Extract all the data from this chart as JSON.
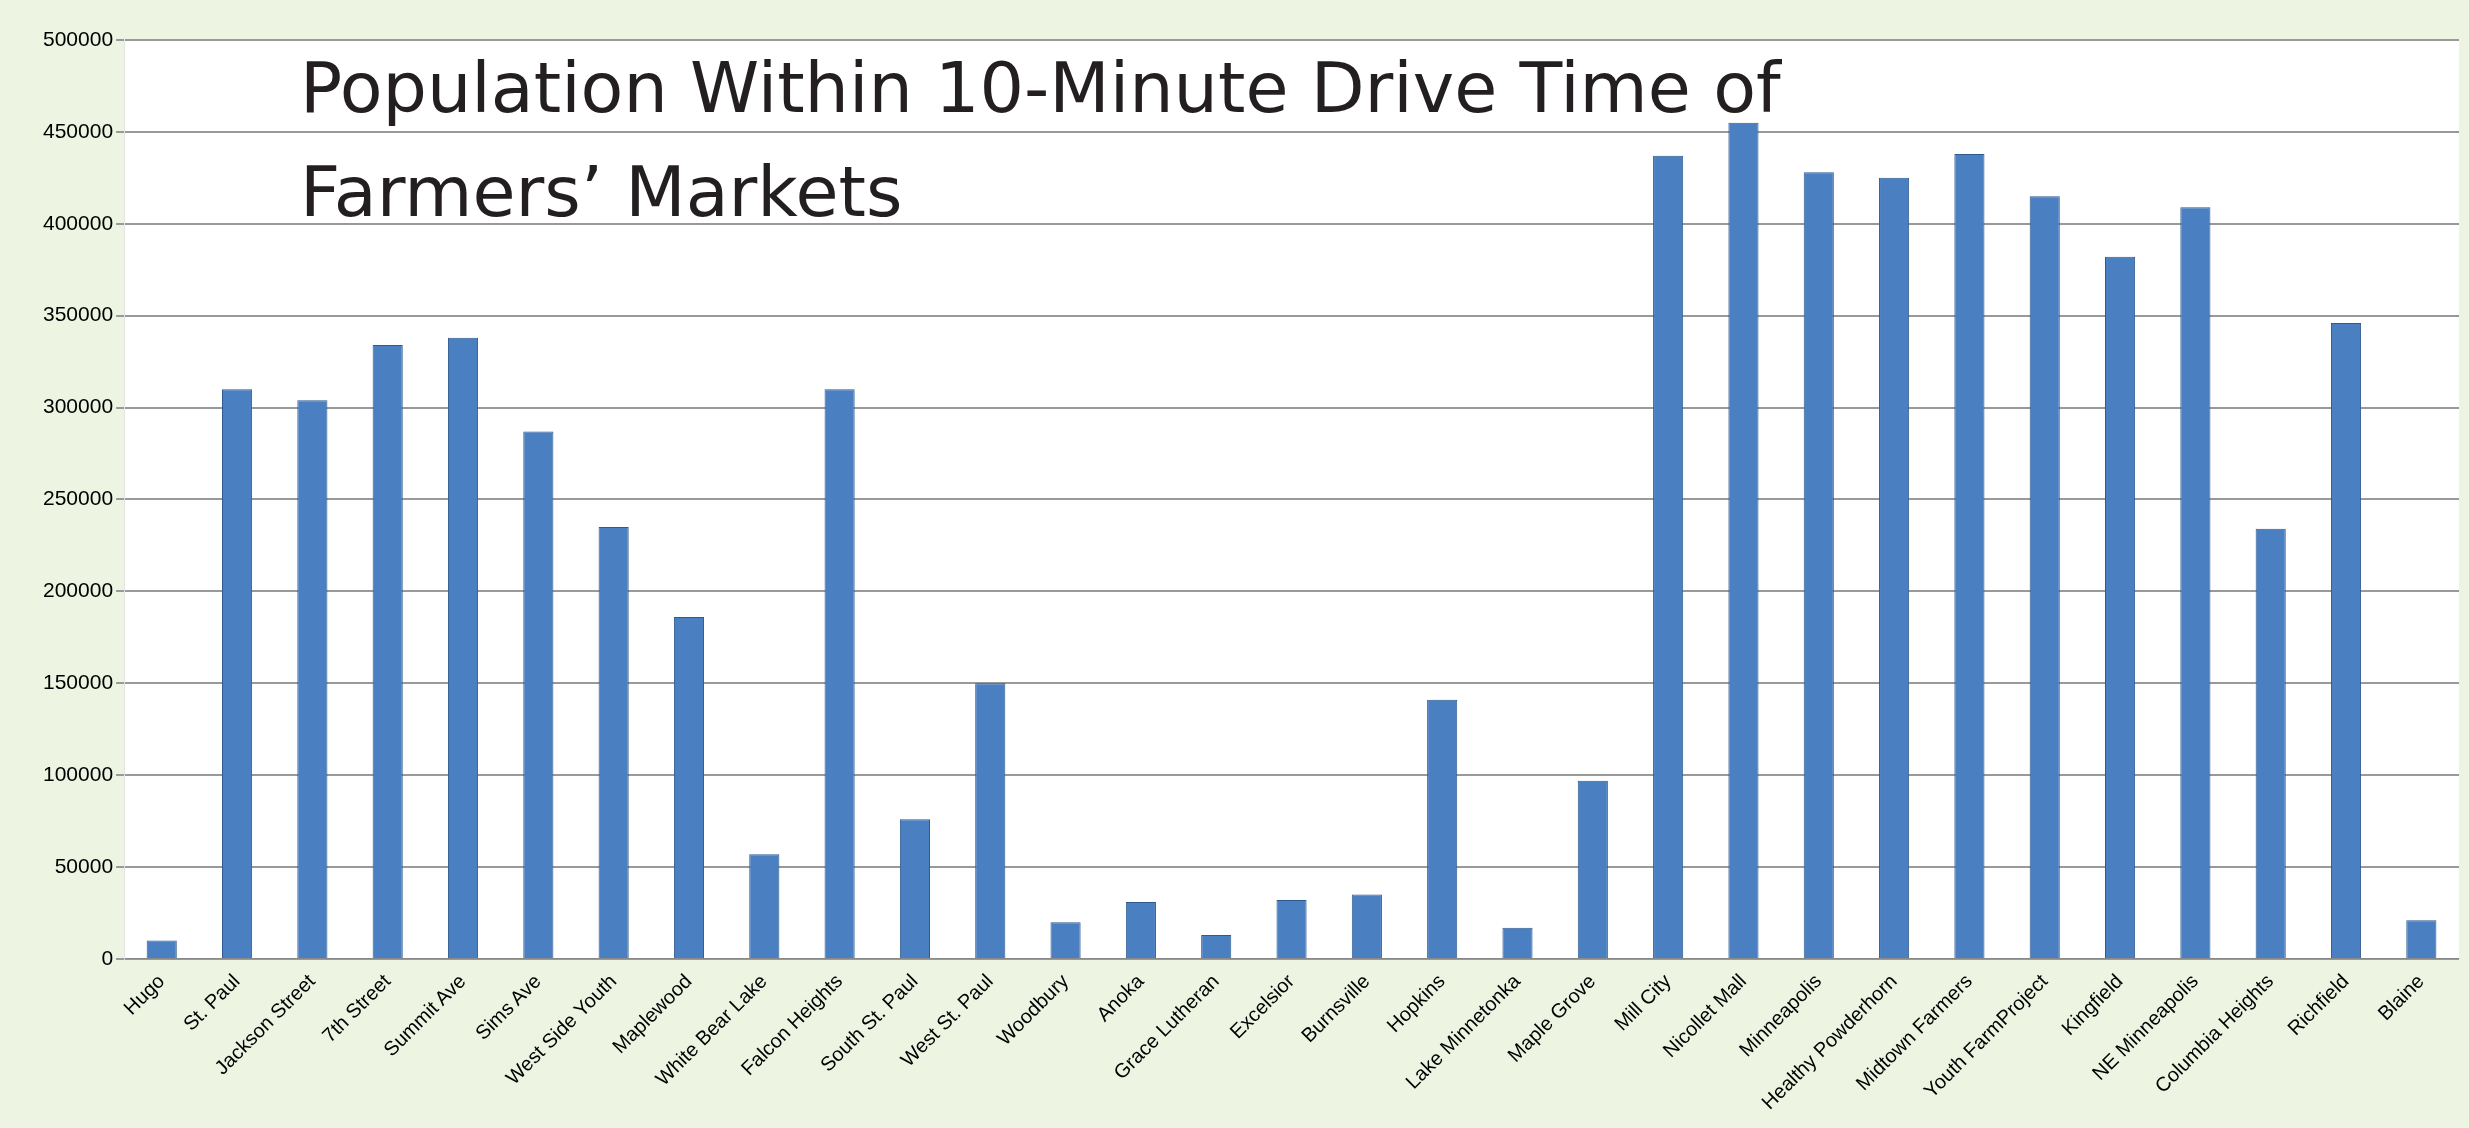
{
  "chart_data": {
    "type": "bar",
    "title": "Population Within 10-Minute Drive Time of Farmers’ Markets",
    "categories": [
      "Hugo",
      "St. Paul",
      "Jackson Street",
      "7th Street",
      "Summit Ave",
      "Sims Ave",
      "West Side Youth",
      "Maplewood",
      "White Bear Lake",
      "Falcon Heights",
      "South St. Paul",
      "West St. Paul",
      "Woodbury",
      "Anoka",
      "Grace Lutheran",
      "Excelsior",
      "Burnsville",
      "Hopkins",
      "Lake Minnetonka",
      "Maple Grove",
      "Mill City",
      "Nicollet Mall",
      "Minneapolis",
      "Healthy Powderhorn",
      "Midtown Farmers",
      "Youth FarmProject",
      "Kingfield",
      "NE Minneapolis",
      "Columbia Heights",
      "Richfield",
      "Blaine"
    ],
    "values": [
      10000,
      310000,
      304000,
      334000,
      338000,
      287000,
      235000,
      186000,
      57000,
      310000,
      76000,
      150000,
      20000,
      31000,
      13000,
      32000,
      35000,
      141000,
      17000,
      97000,
      437000,
      455000,
      428000,
      425000,
      438000,
      415000,
      382000,
      409000,
      234000,
      346000,
      21000
    ],
    "color": "#4a7fc1",
    "ylim": [
      0,
      500000
    ],
    "yticks": [
      0,
      50000,
      100000,
      150000,
      200000,
      250000,
      300000,
      350000,
      400000,
      450000,
      500000
    ],
    "grid": "y"
  }
}
